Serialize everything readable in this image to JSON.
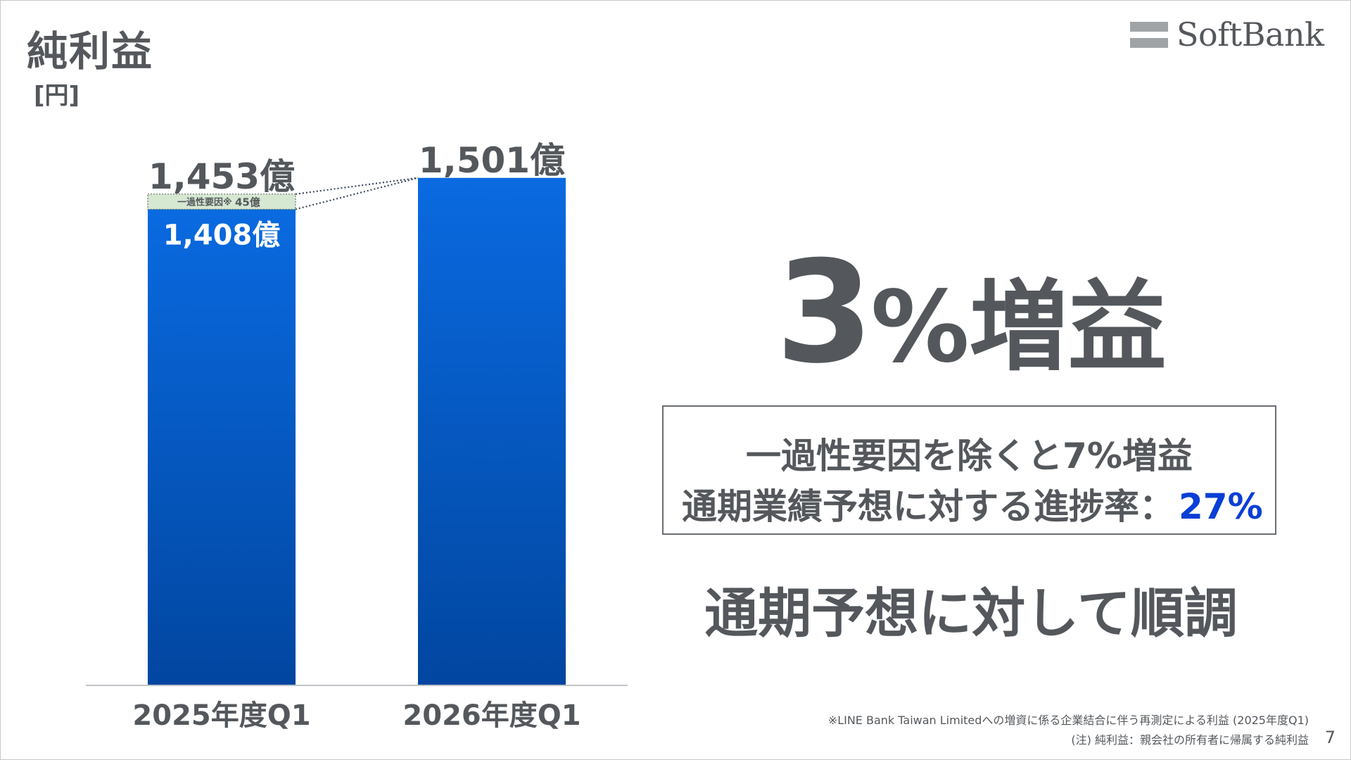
{
  "page": {
    "title": "純利益",
    "unit": "[円]",
    "logo_text": "SoftBank",
    "page_number": "7"
  },
  "chart_data": {
    "type": "bar",
    "title": "純利益",
    "ylabel": "[円]",
    "categories": [
      "2025年度Q1",
      "2026年度Q1"
    ],
    "values": [
      1453,
      1501
    ],
    "value_labels": [
      "1,453億",
      "1,501億"
    ],
    "unit": "億円",
    "breakdown": {
      "category": "2025年度Q1",
      "base_value": 1408,
      "base_label": "1,408億",
      "one_time_value": 45,
      "one_time_label": "一過性要因",
      "one_time_mark": "※",
      "one_time_value_label": "45億"
    },
    "colors": {
      "bar_top": "#0a6ae0",
      "bar_bottom": "#0146a0",
      "one_time_fill": "#d6e8d2",
      "axis": "#c0c4c8",
      "text": "#54585c"
    }
  },
  "highlight": {
    "growth_number": "3",
    "growth_rest": "%増益",
    "excluding_one_time": "一過性要因を除くと7%増益",
    "progress_label": "通期業績予想に対する進捗率：",
    "progress_value": "27%",
    "progress_color": "#0a3fd6",
    "conclusion": "通期予想に対して順調"
  },
  "footnotes": {
    "note1": "※LINE Bank Taiwan Limitedへの増資に係る企業結合に伴う再測定による利益 (2025年度Q1)",
    "note2": "(注) 純利益：親会社の所有者に帰属する純利益"
  }
}
